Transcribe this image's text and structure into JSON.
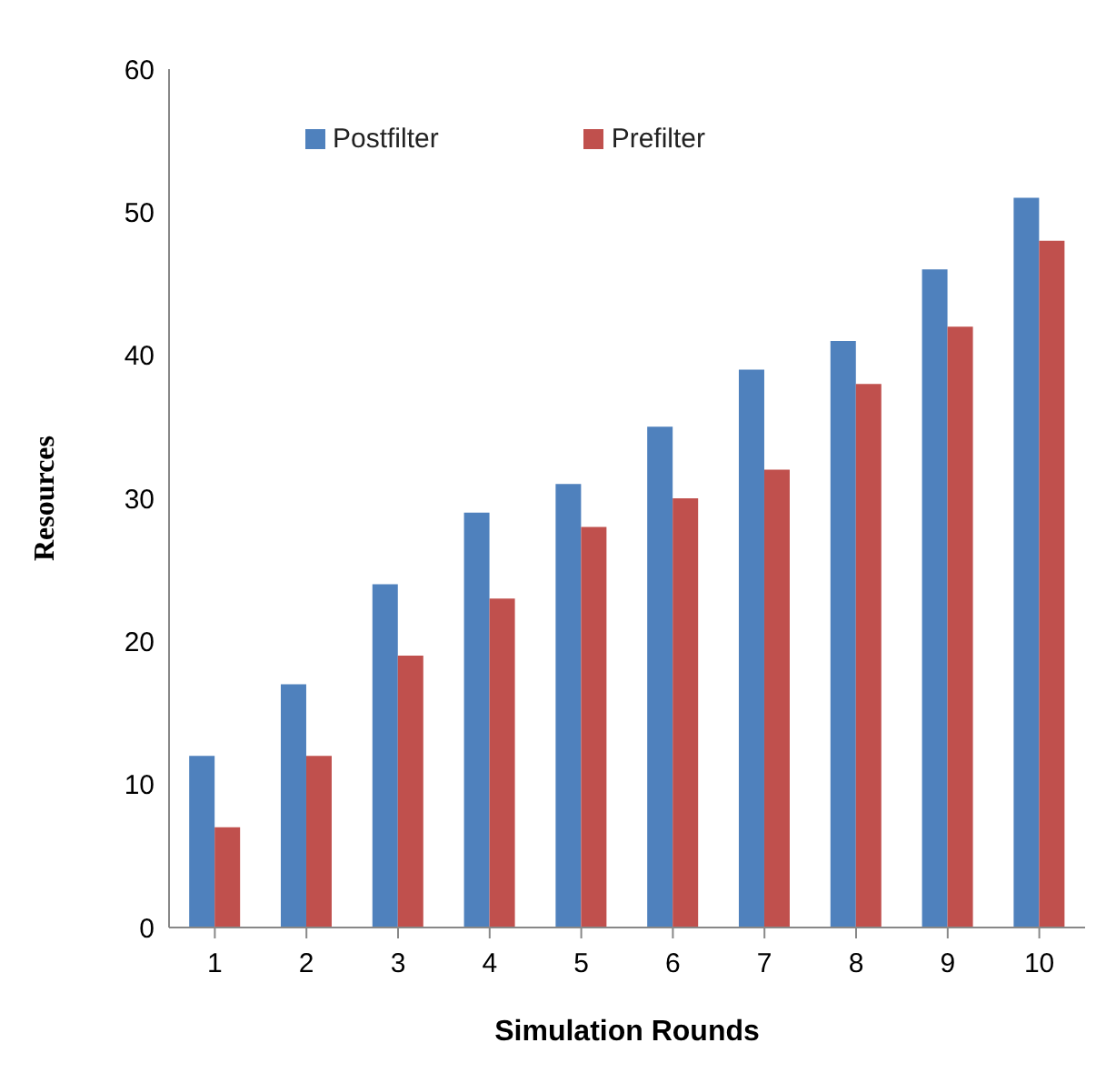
{
  "chart_data": {
    "type": "bar",
    "xlabel": "Simulation Rounds",
    "ylabel": "Resources",
    "categories": [
      "1",
      "2",
      "3",
      "4",
      "5",
      "6",
      "7",
      "8",
      "9",
      "10"
    ],
    "series": [
      {
        "name": "Postfilter",
        "color": "#4f81bd",
        "values": [
          12,
          17,
          24,
          29,
          31,
          35,
          39,
          41,
          46,
          51
        ]
      },
      {
        "name": "Prefilter",
        "color": "#c0504d",
        "values": [
          7,
          12,
          19,
          23,
          28,
          30,
          32,
          38,
          42,
          48
        ]
      }
    ],
    "ylim": [
      0,
      60
    ],
    "yticks": [
      0,
      10,
      20,
      30,
      40,
      50,
      60
    ],
    "grid": false,
    "legend": "top"
  }
}
